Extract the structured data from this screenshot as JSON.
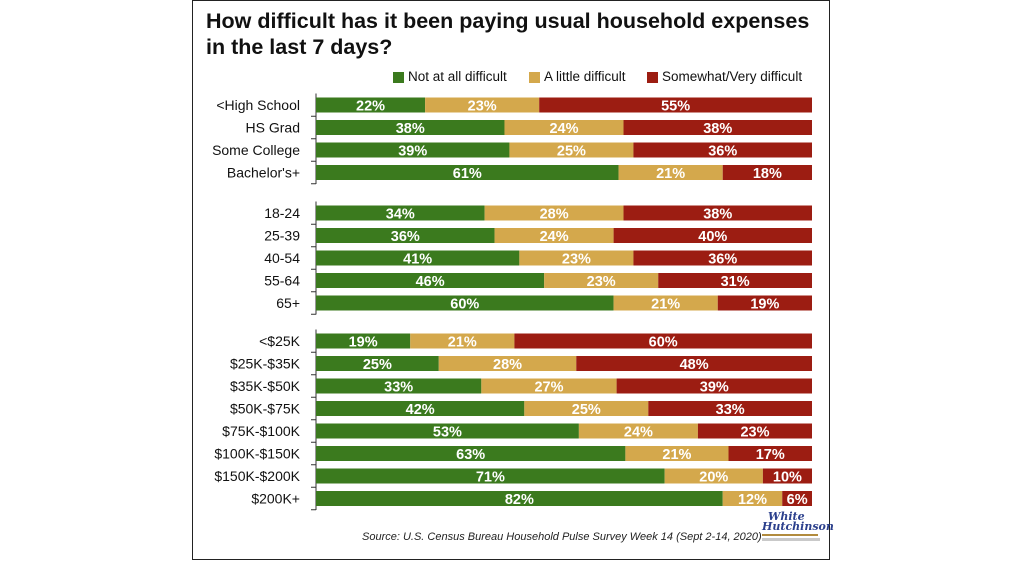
{
  "title": "How difficult has it been paying usual household expenses in the last 7 days?",
  "source": "Source: U.S. Census Bureau Household Pulse Survey Week 14 (Sept 2-14, 2020)",
  "logo": {
    "line1": "White",
    "line2": "Hutchinson"
  },
  "colors": {
    "not_at_all": "#3b7a1e",
    "a_little": "#d4a84c",
    "somewhat_very": "#9c1d12"
  },
  "chart_data": {
    "type": "bar",
    "orientation": "horizontal",
    "stacked": true,
    "xlim": [
      0,
      100
    ],
    "legend_position": "top-right",
    "series_names": [
      "Not at all difficult",
      "A little difficult",
      "Somewhat/Very difficult"
    ],
    "groups": [
      {
        "categories": [
          "<High School",
          "HS Grad",
          "Some College",
          "Bachelor's+"
        ],
        "values": [
          [
            22,
            23,
            55
          ],
          [
            38,
            24,
            38
          ],
          [
            39,
            25,
            36
          ],
          [
            61,
            21,
            18
          ]
        ]
      },
      {
        "categories": [
          "18-24",
          "25-39",
          "40-54",
          "55-64",
          "65+"
        ],
        "values": [
          [
            34,
            28,
            38
          ],
          [
            36,
            24,
            40
          ],
          [
            41,
            23,
            36
          ],
          [
            46,
            23,
            31
          ],
          [
            60,
            21,
            19
          ]
        ]
      },
      {
        "categories": [
          "<$25K",
          "$25K-$35K",
          "$35K-$50K",
          "$50K-$75K",
          "$75K-$100K",
          "$100K-$150K",
          "$150K-$200K",
          "$200K+"
        ],
        "values": [
          [
            19,
            21,
            60
          ],
          [
            25,
            28,
            48
          ],
          [
            33,
            27,
            39
          ],
          [
            42,
            25,
            33
          ],
          [
            53,
            24,
            23
          ],
          [
            63,
            21,
            17
          ],
          [
            71,
            20,
            10
          ],
          [
            82,
            12,
            6
          ]
        ]
      }
    ]
  }
}
